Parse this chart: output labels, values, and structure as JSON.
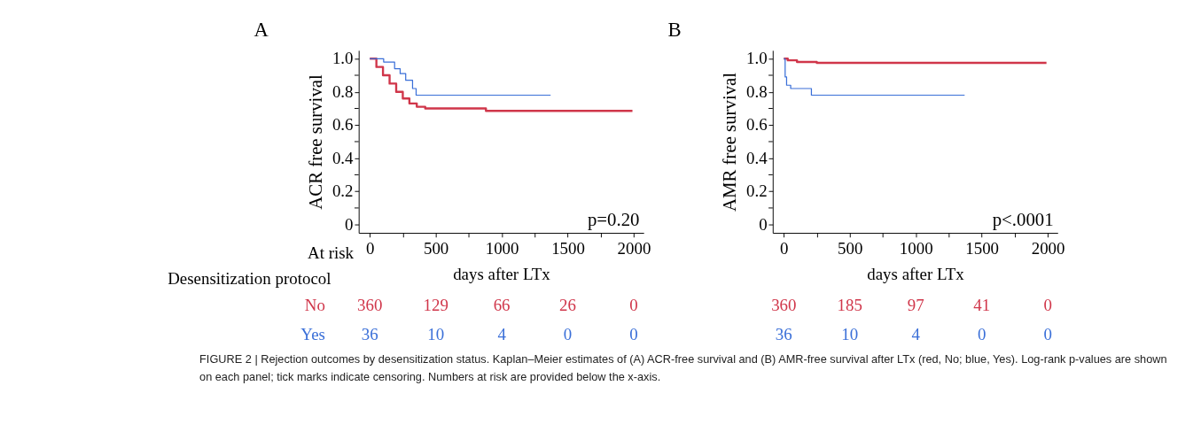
{
  "chart_data": [
    {
      "type": "step",
      "title": "A",
      "xlabel": "days after LTx",
      "ylabel": "ACR free survival",
      "xlim": [
        -84,
        2075
      ],
      "ylim": [
        -0.05,
        1.05
      ],
      "xticks": [
        0,
        {
          "value": 250,
          "label": null
        },
        500,
        {
          "value": 750,
          "label": null
        },
        1000,
        {
          "value": 1250,
          "label": null
        },
        1500,
        {
          "value": 1750,
          "label": null
        },
        2000
      ],
      "yticks": [
        0,
        {
          "value": 0.1,
          "label": null
        },
        0.2,
        {
          "value": 0.3,
          "label": null
        },
        0.4,
        {
          "value": 0.5,
          "label": null
        },
        0.6,
        {
          "value": 0.7,
          "label": null
        },
        0.8,
        {
          "value": 0.9,
          "label": null
        },
        {
          "value": 1,
          "label": "1.0"
        }
      ],
      "grid": false,
      "legend": false,
      "marker": "none",
      "line_style": "solid",
      "series": [
        {
          "name": "No",
          "color": "#d0364a",
          "x": [
            0,
            50,
            100,
            150,
            200,
            250,
            300,
            356,
            420,
            880,
            1990
          ],
          "values": [
            1.0,
            0.95,
            0.9,
            0.85,
            0.8,
            0.76,
            0.73,
            0.71,
            0.7,
            0.685,
            0.685
          ]
        },
        {
          "name": "Yes",
          "color": "#3a6fd8",
          "x": [
            0,
            105,
            188,
            230,
            272,
            324,
            351,
            1370
          ],
          "values": [
            1.0,
            0.98,
            0.94,
            0.91,
            0.87,
            0.82,
            0.78,
            0.78
          ]
        }
      ],
      "annotations": [
        "p=0.20",
        "At risk",
        "Desensitization protocol",
        "360",
        "129",
        "66",
        "26",
        "0",
        "36",
        "10",
        "4",
        "0",
        "0",
        "FIGURE 2 | Rejection outcomes by desensitization status. Kaplan–Meier estimates of (A) ACR-free survival and (B) AMR-free survival after LTx (red, No; blue, Yes). Log-rank p-values are shown on each panel; tick marks indicate censoring. Numbers at risk are provided below the x-axis."
      ]
    },
    {
      "type": "step",
      "title": "B",
      "xlabel": "days after LTx",
      "ylabel": "AMR free survival",
      "xlim": [
        -84,
        2075
      ],
      "ylim": [
        -0.05,
        1.05
      ],
      "xticks": [
        0,
        {
          "value": 250,
          "label": null
        },
        500,
        {
          "value": 750,
          "label": null
        },
        1000,
        {
          "value": 1250,
          "label": null
        },
        1500,
        {
          "value": 1750,
          "label": null
        },
        2000
      ],
      "yticks": [
        0,
        {
          "value": 0.1,
          "label": null
        },
        0.2,
        {
          "value": 0.3,
          "label": null
        },
        0.4,
        {
          "value": 0.5,
          "label": null
        },
        0.6,
        {
          "value": 0.7,
          "label": null
        },
        0.8,
        {
          "value": 0.9,
          "label": null
        },
        {
          "value": 1,
          "label": "1.0"
        }
      ],
      "grid": false,
      "legend": false,
      "marker": "none",
      "line_style": "solid",
      "series": [
        {
          "color": "#d0364a",
          "x": [
            0,
            30,
            100,
            250,
            1990
          ],
          "values": [
            1.0,
            0.99,
            0.98,
            0.975,
            0.975
          ]
        },
        {
          "color": "#3a6fd8",
          "x": [
            0,
            10,
            21,
            52,
            209,
            1370
          ],
          "values": [
            1.0,
            0.89,
            0.84,
            0.82,
            0.78,
            0.78
          ]
        }
      ],
      "annotations": [
        "p<.0001",
        "360",
        "185",
        "97",
        "41",
        "0",
        "36",
        "10",
        "4",
        "0",
        "0"
      ]
    }
  ]
}
